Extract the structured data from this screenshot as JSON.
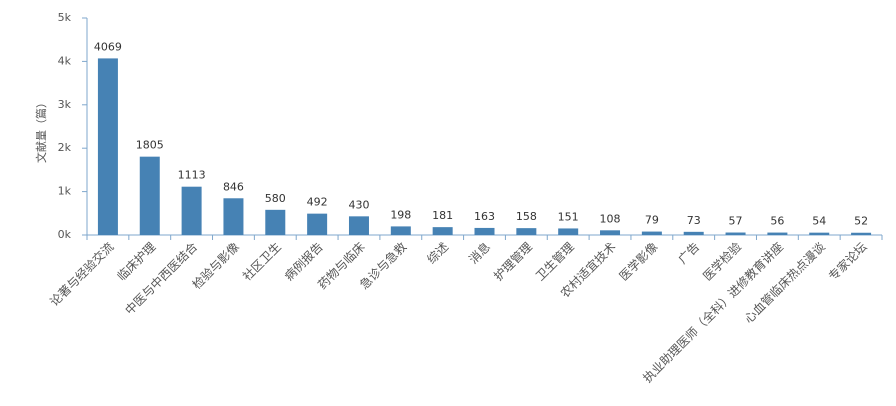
{
  "chart_data": {
    "type": "bar",
    "y_label": "文献量（篇）",
    "categories": [
      "论著与经验交流",
      "临床护理",
      "中医与中西医结合",
      "检验与影像",
      "社区卫生",
      "病例报告",
      "药物与临床",
      "急诊与急救",
      "综述",
      "消息",
      "护理管理",
      "卫生管理",
      "农村适宜技术",
      "医学影像",
      "广告",
      "医学检验",
      "执业助理医师（全科）进修教育讲座",
      "心血管临床热点漫谈",
      "专家论坛"
    ],
    "values": [
      4069,
      1805,
      1113,
      846,
      580,
      492,
      430,
      198,
      181,
      163,
      158,
      151,
      108,
      79,
      73,
      57,
      56,
      54,
      52
    ],
    "color": "#4682b4",
    "ylim": [
      0,
      5000
    ],
    "yticks": [
      {
        "value": 0,
        "label": "0k"
      },
      {
        "value": 1000,
        "label": "1k"
      },
      {
        "value": 2000,
        "label": "2k"
      },
      {
        "value": 3000,
        "label": "3k"
      },
      {
        "value": 4000,
        "label": "4k"
      },
      {
        "value": 5000,
        "label": "5k"
      }
    ],
    "grid": false
  }
}
